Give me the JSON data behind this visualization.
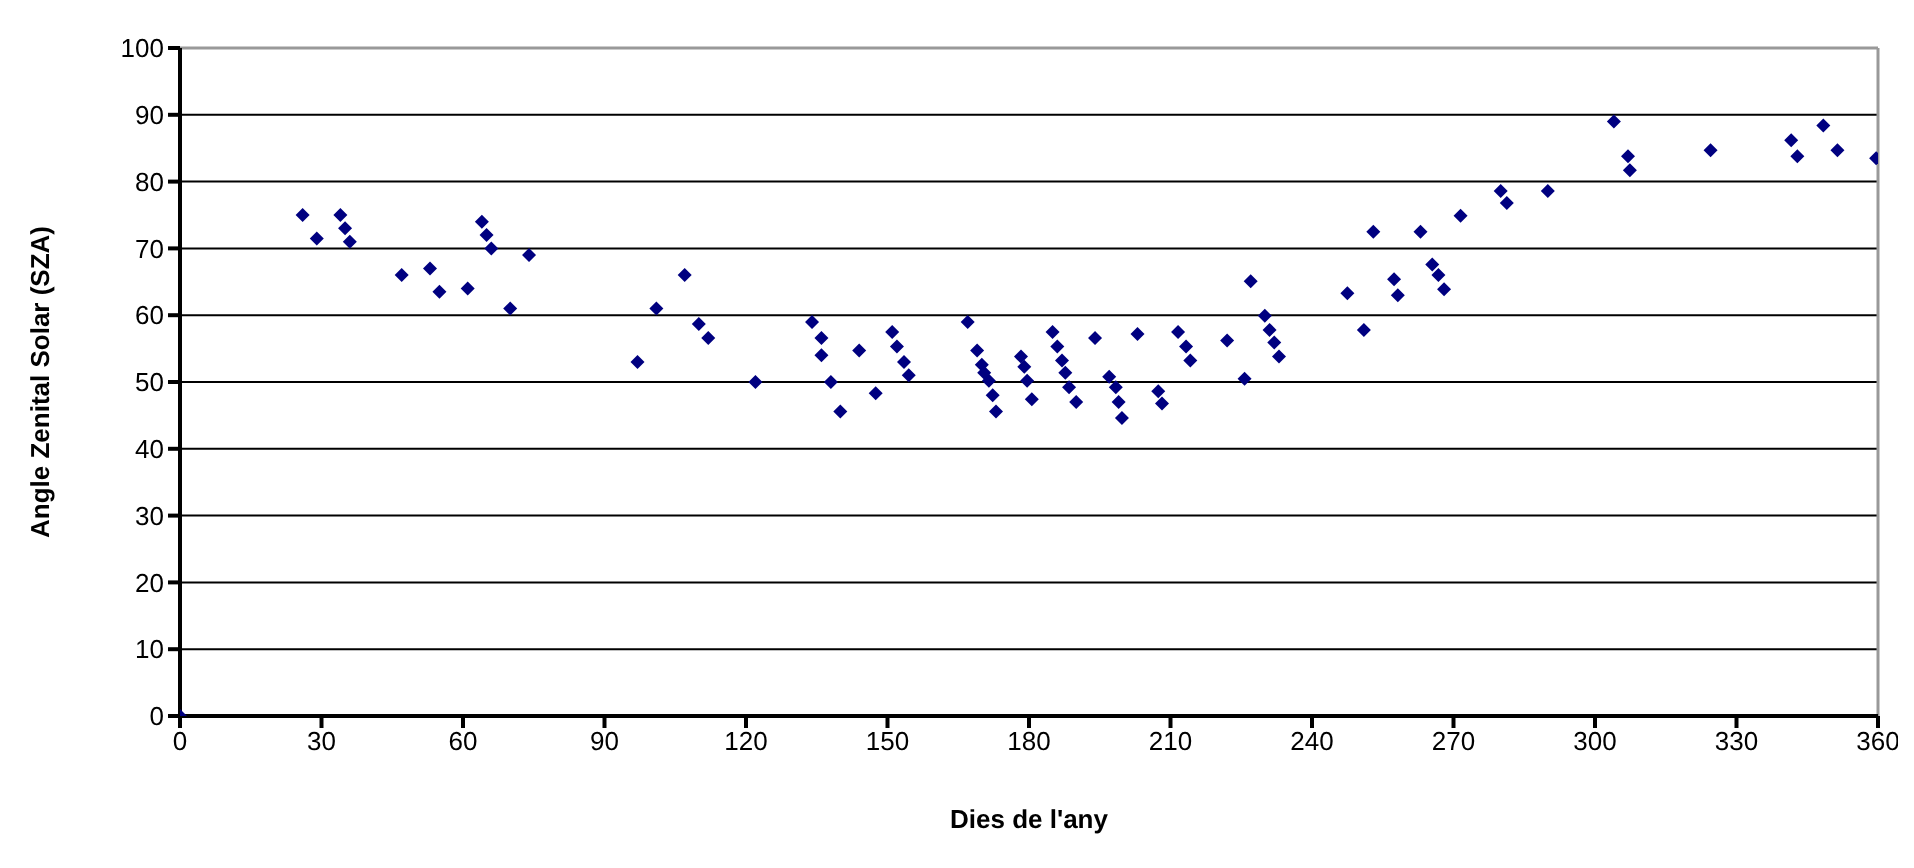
{
  "chart_data": {
    "type": "scatter",
    "xlabel": "Dies de l'any",
    "ylabel": "Angle Zenital Solar (SZA)",
    "xlim": [
      0,
      360
    ],
    "xticks": [
      0,
      30,
      60,
      90,
      120,
      150,
      180,
      210,
      240,
      270,
      300,
      330,
      360
    ],
    "ylim": [
      0,
      100
    ],
    "yticks": [
      0,
      10,
      20,
      30,
      40,
      50,
      60,
      70,
      80,
      90,
      100
    ],
    "grid": "y",
    "legend": false,
    "marker": "diamond",
    "series": [
      {
        "color": "#000080",
        "x": [
          0,
          26,
          29,
          34,
          35,
          36,
          47,
          53,
          55,
          61,
          64,
          65,
          66,
          70,
          74,
          97,
          101,
          107,
          110,
          112,
          122,
          134,
          136,
          136,
          138,
          140,
          144,
          147.5,
          151,
          152,
          153.5,
          154.5,
          167,
          169,
          170,
          170.5,
          171.5,
          172.3,
          173,
          178.3,
          179,
          179.6,
          180.6,
          185,
          186,
          187,
          187.7,
          188.5,
          190,
          194,
          197,
          198.4,
          199,
          199.7,
          203,
          207.4,
          208.2,
          211.6,
          213.3,
          214.2,
          222,
          225.7,
          227,
          230,
          231,
          232,
          233,
          247.5,
          251,
          253,
          257.4,
          258.2,
          263,
          265.5,
          266.8,
          268,
          271.5,
          280,
          281.3,
          290,
          304,
          307,
          307.4,
          324.5,
          341.6,
          342.9,
          348.4,
          351.4,
          359.6
        ],
        "values": [
          0,
          75,
          71.5,
          75,
          73,
          71,
          66,
          67,
          63.5,
          64,
          74,
          72,
          70,
          61,
          69,
          53,
          61,
          66,
          58.7,
          56.6,
          50,
          59,
          56.6,
          54,
          50,
          45.6,
          54.7,
          48.3,
          57.5,
          55.3,
          53,
          51,
          59,
          54.7,
          52.6,
          51.4,
          50.2,
          48,
          45.6,
          53.8,
          52.3,
          50.2,
          47.4,
          57.5,
          55.3,
          53.2,
          51.4,
          49.2,
          47,
          56.6,
          50.8,
          49.2,
          47,
          44.6,
          57.2,
          48.6,
          46.8,
          57.5,
          55.3,
          53.2,
          56.2,
          50.5,
          65.1,
          59.9,
          57.8,
          55.9,
          53.8,
          63.3,
          57.8,
          72.5,
          65.4,
          63,
          72.5,
          67.6,
          66,
          63.9,
          74.9,
          78.6,
          76.8,
          78.6,
          89,
          83.8,
          81.7,
          84.7,
          86.2,
          83.8,
          88.4,
          84.7,
          83.5
        ]
      }
    ]
  }
}
